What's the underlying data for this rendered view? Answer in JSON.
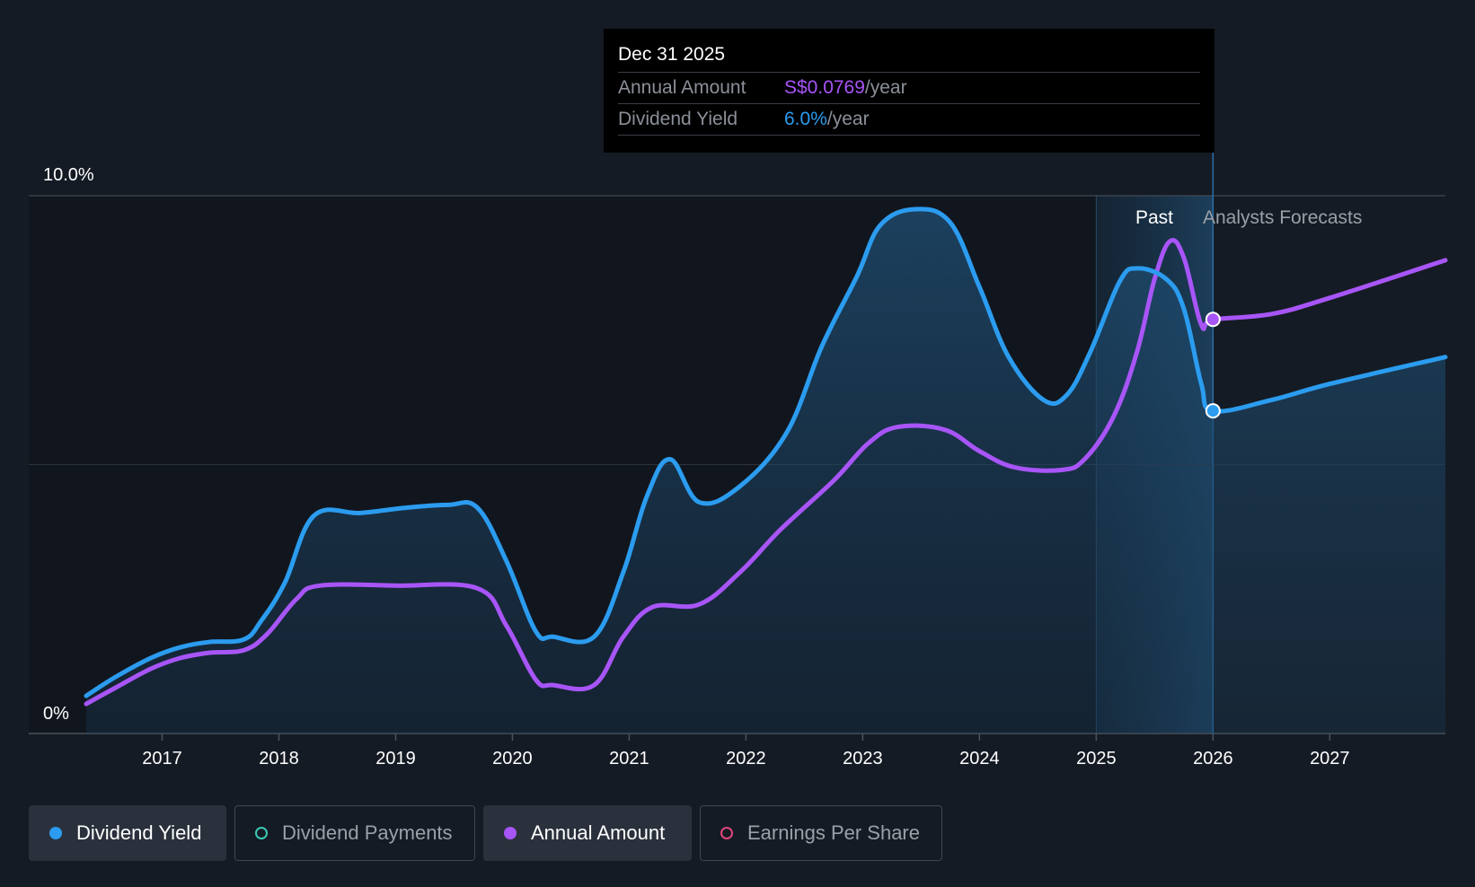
{
  "tooltip": {
    "date": "Dec 31 2025",
    "rows": [
      {
        "label": "Annual Amount",
        "value": "S$0.0769",
        "unit": "/year"
      },
      {
        "label": "Dividend Yield",
        "value": "6.0%",
        "unit": "/year"
      }
    ]
  },
  "regions": {
    "past": "Past",
    "forecast": "Analysts Forecasts"
  },
  "legend": [
    {
      "label": "Dividend Yield",
      "color": "#2b9cef",
      "active": true
    },
    {
      "label": "Dividend Payments",
      "color": "#3bc9b4",
      "active": false
    },
    {
      "label": "Annual Amount",
      "color": "#a855f7",
      "active": true
    },
    {
      "label": "Earnings Per Share",
      "color": "#e0457b",
      "active": false
    }
  ],
  "colors": {
    "yield": "#2b9cef",
    "amount": "#a855f7",
    "background": "#151b24"
  },
  "chart_data": {
    "type": "line",
    "title": "",
    "ylabel": "",
    "xlabel": "",
    "y_tick_labels": [
      "0%",
      "10.0%"
    ],
    "ylim": [
      0,
      10
    ],
    "xlim": [
      2016.35,
      2027.99
    ],
    "x_ticks": [
      2017,
      2018,
      2019,
      2020,
      2021,
      2022,
      2023,
      2024,
      2025,
      2026,
      2027
    ],
    "past_forecast_boundary": 2026.0,
    "highlight_start": 2025.0,
    "series": [
      {
        "name": "Dividend Yield",
        "unit": "%",
        "points": [
          [
            2016.35,
            0.7
          ],
          [
            2016.6,
            1.05
          ],
          [
            2016.9,
            1.4
          ],
          [
            2017.15,
            1.6
          ],
          [
            2017.4,
            1.7
          ],
          [
            2017.7,
            1.75
          ],
          [
            2017.85,
            2.1
          ],
          [
            2018.05,
            2.8
          ],
          [
            2018.3,
            4.05
          ],
          [
            2018.7,
            4.1
          ],
          [
            2019.1,
            4.2
          ],
          [
            2019.45,
            4.25
          ],
          [
            2019.7,
            4.2
          ],
          [
            2019.95,
            3.2
          ],
          [
            2020.2,
            1.9
          ],
          [
            2020.35,
            1.8
          ],
          [
            2020.7,
            1.8
          ],
          [
            2020.95,
            3.0
          ],
          [
            2021.15,
            4.4
          ],
          [
            2021.35,
            5.1
          ],
          [
            2021.6,
            4.3
          ],
          [
            2021.95,
            4.6
          ],
          [
            2022.35,
            5.6
          ],
          [
            2022.65,
            7.2
          ],
          [
            2022.95,
            8.5
          ],
          [
            2023.15,
            9.45
          ],
          [
            2023.45,
            9.75
          ],
          [
            2023.75,
            9.5
          ],
          [
            2024.0,
            8.3
          ],
          [
            2024.25,
            7.0
          ],
          [
            2024.55,
            6.2
          ],
          [
            2024.75,
            6.3
          ],
          [
            2024.95,
            7.1
          ],
          [
            2025.2,
            8.4
          ],
          [
            2025.35,
            8.65
          ],
          [
            2025.6,
            8.45
          ],
          [
            2025.75,
            7.9
          ],
          [
            2025.9,
            6.5
          ],
          [
            2026.0,
            6.0
          ],
          [
            2026.5,
            6.2
          ],
          [
            2027.0,
            6.5
          ],
          [
            2027.99,
            7.0
          ]
        ]
      },
      {
        "name": "Annual Amount",
        "unit": "S$",
        "points": [
          [
            2016.35,
            0.55
          ],
          [
            2016.6,
            0.85
          ],
          [
            2016.9,
            1.2
          ],
          [
            2017.15,
            1.4
          ],
          [
            2017.4,
            1.5
          ],
          [
            2017.7,
            1.55
          ],
          [
            2017.9,
            1.85
          ],
          [
            2018.15,
            2.5
          ],
          [
            2018.35,
            2.75
          ],
          [
            2019.0,
            2.75
          ],
          [
            2019.7,
            2.7
          ],
          [
            2019.95,
            2.0
          ],
          [
            2020.2,
            1.0
          ],
          [
            2020.35,
            0.9
          ],
          [
            2020.7,
            0.9
          ],
          [
            2020.95,
            1.8
          ],
          [
            2021.2,
            2.35
          ],
          [
            2021.6,
            2.4
          ],
          [
            2021.95,
            3.0
          ],
          [
            2022.3,
            3.8
          ],
          [
            2022.75,
            4.7
          ],
          [
            2023.05,
            5.4
          ],
          [
            2023.3,
            5.7
          ],
          [
            2023.7,
            5.65
          ],
          [
            2024.0,
            5.25
          ],
          [
            2024.3,
            4.95
          ],
          [
            2024.7,
            4.9
          ],
          [
            2024.9,
            5.1
          ],
          [
            2025.15,
            5.9
          ],
          [
            2025.35,
            7.1
          ],
          [
            2025.5,
            8.45
          ],
          [
            2025.63,
            9.15
          ],
          [
            2025.75,
            8.85
          ],
          [
            2025.9,
            7.6
          ],
          [
            2026.0,
            7.7
          ],
          [
            2026.5,
            7.8
          ],
          [
            2027.0,
            8.1
          ],
          [
            2027.99,
            8.8
          ]
        ]
      }
    ],
    "markers": [
      {
        "series": "Annual Amount",
        "x": 2026.0,
        "value": 7.7
      },
      {
        "series": "Dividend Yield",
        "x": 2026.0,
        "value": 6.0
      }
    ]
  }
}
